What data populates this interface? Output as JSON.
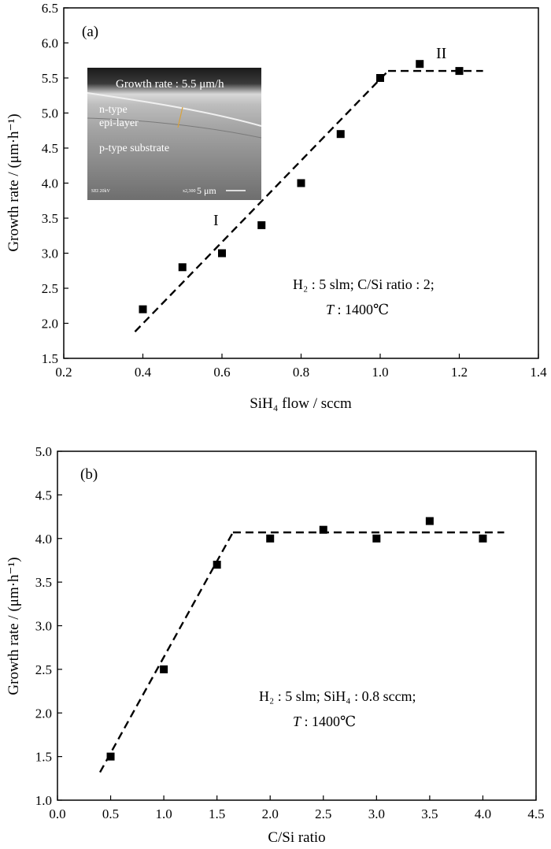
{
  "chart_data": [
    {
      "type": "scatter",
      "panel_label": "(a)",
      "xlabel": "SiH₄ flow / sccm",
      "ylabel": "Growth rate / (μm·h⁻¹)",
      "xlim": [
        0.2,
        1.4
      ],
      "ylim": [
        1.5,
        6.5
      ],
      "xticks": [
        "0.2",
        "0.4",
        "0.6",
        "0.8",
        "1.0",
        "1.2",
        "1.4"
      ],
      "yticks": [
        "1.5",
        "2.0",
        "2.5",
        "3.0",
        "3.5",
        "4.0",
        "4.5",
        "5.0",
        "5.5",
        "6.0",
        "6.5"
      ],
      "series": [
        {
          "x": [
            0.4,
            0.5,
            0.6,
            0.7,
            0.8,
            0.9,
            1.0,
            1.1,
            1.2
          ],
          "y": [
            2.2,
            2.8,
            3.0,
            3.4,
            4.0,
            4.7,
            5.5,
            5.7,
            5.6
          ]
        }
      ],
      "fit_lines": [
        {
          "x": [
            0.38,
            1.02
          ],
          "y": [
            1.88,
            5.6
          ],
          "style": "dashed"
        },
        {
          "x": [
            1.02,
            1.26
          ],
          "y": [
            5.6,
            5.6
          ],
          "style": "dashed"
        }
      ],
      "region_labels": [
        "I",
        "II"
      ],
      "conditions": {
        "line1": "H₂ : 5 slm; C/Si ratio : 2;",
        "line2_italic": "T",
        "line2_rest": " : 1400℃"
      },
      "inset": {
        "title": "Growth rate : 5.5 μm/h",
        "label_ntype_1": "n-type",
        "label_ntype_2": "epi-layer",
        "label_ptype": "p-type substrate",
        "scalebar": "5 μm",
        "footer_left": "SEI    20kV",
        "footer_mid": "x2,300"
      }
    },
    {
      "type": "scatter",
      "panel_label": "(b)",
      "xlabel": "C/Si ratio",
      "ylabel": "Growth rate / (μm·h⁻¹)",
      "xlim": [
        0.0,
        4.5
      ],
      "ylim": [
        1.0,
        5.0
      ],
      "xticks": [
        "0.0",
        "0.5",
        "1.0",
        "1.5",
        "2.0",
        "2.5",
        "3.0",
        "3.5",
        "4.0",
        "4.5"
      ],
      "yticks": [
        "1.0",
        "1.5",
        "2.0",
        "2.5",
        "3.0",
        "3.5",
        "4.0",
        "4.5",
        "5.0"
      ],
      "series": [
        {
          "x": [
            0.5,
            1.0,
            1.5,
            2.0,
            2.5,
            3.0,
            3.5,
            4.0
          ],
          "y": [
            1.5,
            2.5,
            3.7,
            4.0,
            4.1,
            4.0,
            4.2,
            4.0
          ]
        }
      ],
      "fit_lines": [
        {
          "x": [
            0.4,
            1.65
          ],
          "y": [
            1.32,
            4.07
          ],
          "style": "dashed"
        },
        {
          "x": [
            1.65,
            4.2
          ],
          "y": [
            4.07,
            4.07
          ],
          "style": "dashed"
        }
      ],
      "conditions": {
        "line1": "H₂ : 5 slm; SiH₄ : 0.8 sccm;",
        "line2_italic": "T",
        "line2_rest": " : 1400℃"
      }
    }
  ]
}
